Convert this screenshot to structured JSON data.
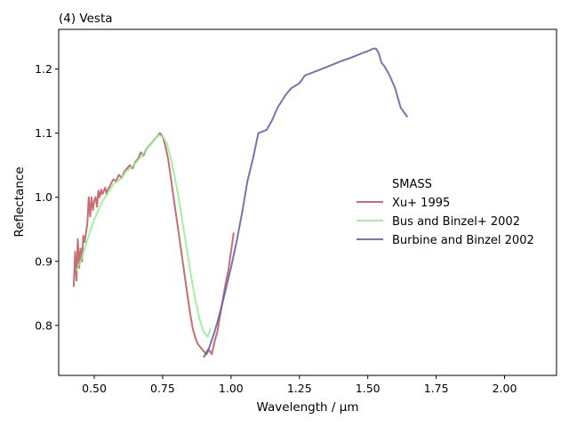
{
  "chart_data": {
    "type": "line",
    "title": "(4) Vesta",
    "xlabel": "Wavelength / µm",
    "ylabel": "Reflectance",
    "xlim": [
      0.37,
      2.19
    ],
    "ylim": [
      0.722,
      1.262
    ],
    "xticks": [
      0.5,
      0.75,
      1.0,
      1.25,
      1.5,
      1.75,
      2.0
    ],
    "xtick_labels": [
      "0.50",
      "0.75",
      "1.00",
      "1.25",
      "1.50",
      "1.75",
      "2.00"
    ],
    "yticks": [
      0.8,
      0.9,
      1.0,
      1.1,
      1.2
    ],
    "ytick_labels": [
      "0.8",
      "0.9",
      "1.0",
      "1.1",
      "1.2"
    ],
    "grid": false,
    "legend": {
      "title": "SMASS",
      "placement": "right"
    },
    "series": [
      {
        "name": "Xu+ 1995",
        "color": "#c0545c",
        "x": [
          0.425,
          0.43,
          0.435,
          0.44,
          0.445,
          0.45,
          0.455,
          0.46,
          0.465,
          0.47,
          0.475,
          0.48,
          0.485,
          0.49,
          0.495,
          0.5,
          0.505,
          0.51,
          0.515,
          0.52,
          0.525,
          0.53,
          0.535,
          0.54,
          0.545,
          0.55,
          0.56,
          0.57,
          0.58,
          0.59,
          0.6,
          0.61,
          0.62,
          0.63,
          0.64,
          0.65,
          0.66,
          0.67,
          0.68,
          0.69,
          0.7,
          0.71,
          0.72,
          0.73,
          0.74,
          0.75,
          0.76,
          0.77,
          0.78,
          0.79,
          0.8,
          0.81,
          0.82,
          0.83,
          0.84,
          0.85,
          0.86,
          0.87,
          0.88,
          0.89,
          0.9,
          0.91,
          0.92,
          0.93,
          0.94,
          0.95,
          0.96,
          0.97,
          0.98,
          0.99,
          1.0,
          1.01
        ],
        "y": [
          0.86,
          0.915,
          0.87,
          0.935,
          0.89,
          0.92,
          0.9,
          0.94,
          0.93,
          0.945,
          0.96,
          1.0,
          0.97,
          1.0,
          0.98,
          0.995,
          1.0,
          0.985,
          1.01,
          1.0,
          1.012,
          1.005,
          1.01,
          1.015,
          1.005,
          1.012,
          1.02,
          1.028,
          1.025,
          1.035,
          1.03,
          1.04,
          1.045,
          1.05,
          1.045,
          1.055,
          1.06,
          1.07,
          1.065,
          1.075,
          1.08,
          1.085,
          1.09,
          1.095,
          1.1,
          1.095,
          1.08,
          1.06,
          1.03,
          1.0,
          0.97,
          0.94,
          0.91,
          0.88,
          0.85,
          0.82,
          0.795,
          0.78,
          0.77,
          0.765,
          0.76,
          0.755,
          0.762,
          0.755,
          0.775,
          0.79,
          0.815,
          0.84,
          0.865,
          0.885,
          0.915,
          0.945
        ]
      },
      {
        "name": "Bus and Binzel+ 2002",
        "color": "#90ee90",
        "x": [
          0.435,
          0.45,
          0.465,
          0.48,
          0.495,
          0.51,
          0.525,
          0.54,
          0.555,
          0.57,
          0.585,
          0.6,
          0.615,
          0.63,
          0.645,
          0.66,
          0.675,
          0.69,
          0.705,
          0.72,
          0.735,
          0.75,
          0.765,
          0.78,
          0.795,
          0.81,
          0.825,
          0.84,
          0.855,
          0.87,
          0.885,
          0.9,
          0.915,
          0.925
        ],
        "y": [
          0.885,
          0.9,
          0.92,
          0.94,
          0.96,
          0.975,
          0.99,
          1.0,
          1.01,
          1.02,
          1.025,
          1.03,
          1.04,
          1.045,
          1.05,
          1.058,
          1.065,
          1.075,
          1.082,
          1.09,
          1.097,
          1.095,
          1.085,
          1.06,
          1.03,
          0.995,
          0.955,
          0.915,
          0.875,
          0.84,
          0.81,
          0.79,
          0.782,
          0.795
        ]
      },
      {
        "name": "Burbine and Binzel 2002",
        "color": "#5b5ea6",
        "x": [
          0.9,
          0.92,
          0.94,
          0.96,
          0.98,
          1.0,
          1.02,
          1.04,
          1.06,
          1.08,
          1.1,
          1.13,
          1.15,
          1.17,
          1.2,
          1.22,
          1.25,
          1.27,
          1.3,
          1.33,
          1.36,
          1.4,
          1.44,
          1.48,
          1.5,
          1.52,
          1.53,
          1.54,
          1.55,
          1.56,
          1.58,
          1.6,
          1.62,
          1.645
        ],
        "y": [
          0.75,
          0.765,
          0.79,
          0.82,
          0.855,
          0.89,
          0.93,
          0.975,
          1.025,
          1.06,
          1.1,
          1.105,
          1.12,
          1.14,
          1.16,
          1.17,
          1.178,
          1.19,
          1.195,
          1.2,
          1.205,
          1.212,
          1.218,
          1.225,
          1.228,
          1.232,
          1.232,
          1.225,
          1.21,
          1.205,
          1.19,
          1.17,
          1.14,
          1.125
        ]
      }
    ]
  }
}
